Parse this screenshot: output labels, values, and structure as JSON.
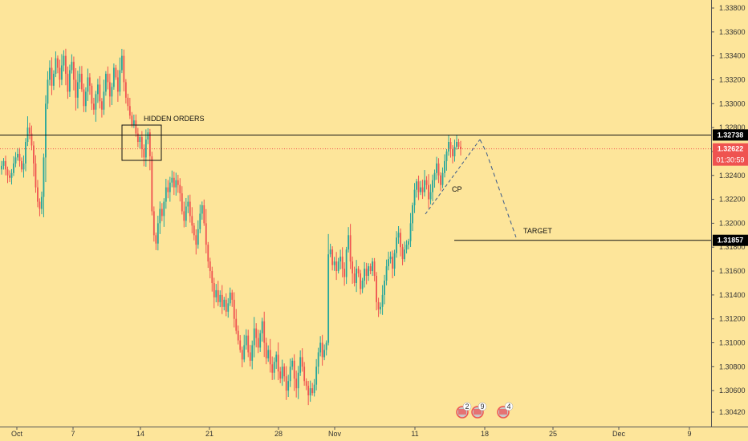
{
  "chart_data": {
    "type": "candlestick",
    "xlabel": "",
    "ylabel": "",
    "ylim": [
      1.3032,
      1.3392
    ],
    "y_ticks": [
      "1.33800",
      "1.33600",
      "1.33400",
      "1.33200",
      "1.33000",
      "1.32800",
      "1.32600",
      "1.32400",
      "1.32200",
      "1.32000",
      "1.31800",
      "1.31600",
      "1.31400",
      "1.31200",
      "1.31000",
      "1.30800",
      "1.30600",
      "1.30420"
    ],
    "x_ticks": [
      "Oct",
      "7",
      "14",
      "21",
      "28",
      "Nov",
      "11",
      "18",
      "25",
      "Dec",
      "9"
    ],
    "grid": false,
    "colors": {
      "up": "#26a69a",
      "down": "#ef5350",
      "background": "#fde59a",
      "axis_text": "#333333"
    },
    "series": [
      {
        "start": 1.3245,
        "closes": [
          1.3248,
          1.3252,
          1.3245,
          1.324,
          1.3238,
          1.3242,
          1.325,
          1.3255,
          1.3258,
          1.3252,
          1.3245,
          1.325,
          1.3268,
          1.328,
          1.3275,
          1.3265,
          1.325,
          1.323,
          1.3218,
          1.3212,
          1.3222,
          1.3255,
          1.33,
          1.332,
          1.333,
          1.3315,
          1.3325,
          1.3338,
          1.333,
          1.332,
          1.3332,
          1.334,
          1.3325,
          1.331,
          1.3328,
          1.3335,
          1.332,
          1.3305,
          1.3318,
          1.3325,
          1.3312,
          1.3298,
          1.331,
          1.3322,
          1.3315,
          1.33,
          1.3295,
          1.3308,
          1.3316,
          1.3302,
          1.3295,
          1.331,
          1.3325,
          1.3318,
          1.3306,
          1.3314,
          1.333,
          1.3322,
          1.331,
          1.3328,
          1.334,
          1.3318,
          1.3305,
          1.3298,
          1.329,
          1.3282,
          1.3286,
          1.3275,
          1.3268,
          1.3272,
          1.3262,
          1.3255,
          1.327,
          1.3276,
          1.3256,
          1.321,
          1.319,
          1.3183,
          1.32,
          1.3212,
          1.3206,
          1.3218,
          1.323,
          1.3226,
          1.3234,
          1.3238,
          1.323,
          1.3236,
          1.3232,
          1.3225,
          1.321,
          1.3202,
          1.3214,
          1.3218,
          1.3206,
          1.3198,
          1.319,
          1.3182,
          1.3195,
          1.3208,
          1.3215,
          1.32,
          1.3182,
          1.3168,
          1.316,
          1.315,
          1.3138,
          1.3144,
          1.3134,
          1.314,
          1.313,
          1.3136,
          1.3126,
          1.3133,
          1.3142,
          1.3136,
          1.312,
          1.311,
          1.3102,
          1.3094,
          1.3086,
          1.3098,
          1.3106,
          1.3092,
          1.3085,
          1.3098,
          1.3112,
          1.3104,
          1.3096,
          1.3108,
          1.3118,
          1.31,
          1.3087,
          1.3094,
          1.3082,
          1.3075,
          1.3084,
          1.309,
          1.3076,
          1.307,
          1.308,
          1.3072,
          1.306,
          1.3068,
          1.308,
          1.3085,
          1.307,
          1.3062,
          1.3075,
          1.3088,
          1.308,
          1.3068,
          1.3064,
          1.3056,
          1.3062,
          1.3058,
          1.3065,
          1.308,
          1.3092,
          1.31,
          1.3088,
          1.3094,
          1.31,
          1.3174,
          1.3178,
          1.3165,
          1.3168,
          1.316,
          1.3168,
          1.3172,
          1.3162,
          1.3155,
          1.3178,
          1.319,
          1.3168,
          1.3158,
          1.315,
          1.3162,
          1.3158,
          1.3145,
          1.3152,
          1.3162,
          1.3156,
          1.3164,
          1.316,
          1.3168,
          1.3156,
          1.3134,
          1.3128,
          1.313,
          1.314,
          1.3152,
          1.3164,
          1.317,
          1.3172,
          1.3162,
          1.3175,
          1.3188,
          1.3192,
          1.318,
          1.317,
          1.3178,
          1.3182,
          1.3185,
          1.32,
          1.3215,
          1.3228,
          1.3235,
          1.3226,
          1.323,
          1.3226,
          1.3236,
          1.3232,
          1.322,
          1.3226,
          1.3236,
          1.3242,
          1.325,
          1.324,
          1.3232,
          1.3242,
          1.3252,
          1.326,
          1.3268,
          1.3262,
          1.3256,
          1.3264,
          1.3268,
          1.3264,
          1.3262
        ]
      }
    ],
    "levels": [
      {
        "price": 1.32738,
        "label": "1.32738",
        "color": "#000000",
        "badge": "#000000"
      },
      {
        "price": 1.32622,
        "label": "1.32622",
        "color": "#ef5350",
        "badge": "#ef5350",
        "dashed": true
      },
      {
        "price": 1.31857,
        "label": "1.31857",
        "color": "#000000",
        "badge": "#000000"
      }
    ],
    "countdown": "01:30:59",
    "annotations": [
      {
        "text": "HIDDEN ORDERS"
      },
      {
        "text": "CP"
      },
      {
        "text": "TARGET"
      }
    ],
    "event_badges": [
      "2",
      "9",
      "4"
    ]
  }
}
